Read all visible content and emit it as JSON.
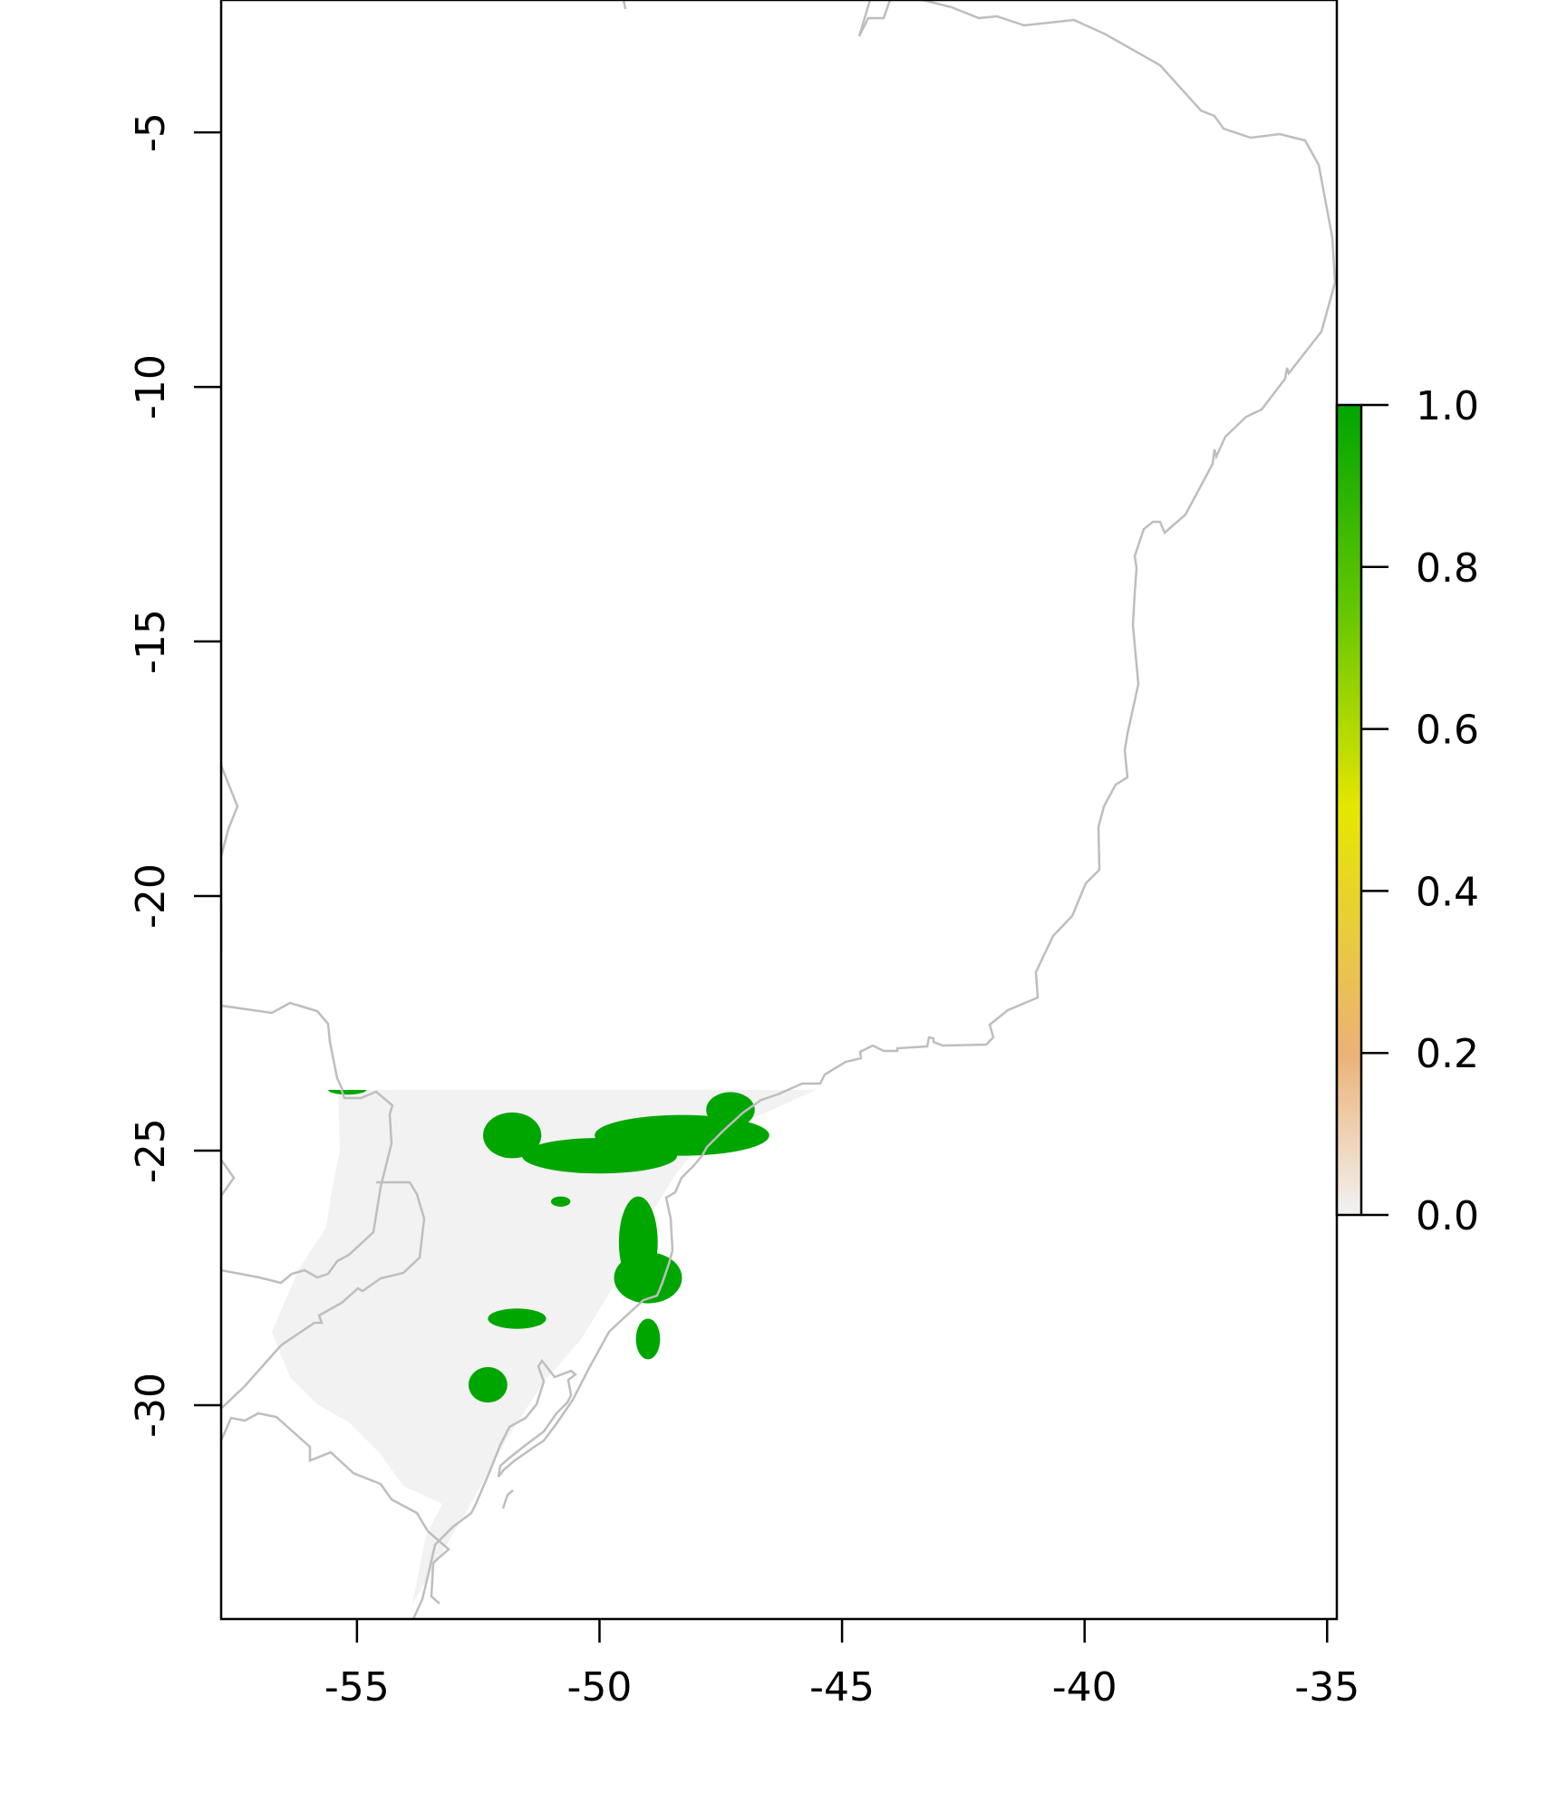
{
  "chart_data": {
    "type": "raster-map",
    "xlim": [
      -57.8,
      -34.8
    ],
    "ylim": [
      -34.2,
      -2.4
    ],
    "x_ticks": [
      {
        "value": -55,
        "label": "-55"
      },
      {
        "value": -50,
        "label": "-50"
      },
      {
        "value": -45,
        "label": "-45"
      },
      {
        "value": -40,
        "label": "-40"
      },
      {
        "value": -35,
        "label": "-35"
      }
    ],
    "y_ticks": [
      {
        "value": -5,
        "label": "-5"
      },
      {
        "value": -10,
        "label": "-10"
      },
      {
        "value": -15,
        "label": "-15"
      },
      {
        "value": -20,
        "label": "-20"
      },
      {
        "value": -25,
        "label": "-25"
      },
      {
        "value": -30,
        "label": "-30"
      }
    ],
    "legend": {
      "range": [
        0.0,
        1.0
      ],
      "ticks": [
        {
          "value": 0.0,
          "label": "0.0"
        },
        {
          "value": 0.2,
          "label": "0.2"
        },
        {
          "value": 0.4,
          "label": "0.4"
        },
        {
          "value": 0.6,
          "label": "0.6"
        },
        {
          "value": 0.8,
          "label": "0.8"
        },
        {
          "value": 1.0,
          "label": "1.0"
        }
      ],
      "colors": [
        "#f2f2f2",
        "#ecb176",
        "#e6e600",
        "#63c600",
        "#00a600"
      ],
      "placement": "right"
    },
    "raster_extent": {
      "lon": [
        -55,
        -46
      ],
      "lat": [
        -34,
        -23.7
      ]
    },
    "suitable_areas_value": 1.0,
    "suitable_areas": [
      {
        "lon": -48.3,
        "lat": -24.7,
        "rx": 1.8,
        "ry": 0.4
      },
      {
        "lon": -50.0,
        "lat": -25.1,
        "rx": 1.6,
        "ry": 0.35
      },
      {
        "lon": -51.8,
        "lat": -24.7,
        "rx": 0.6,
        "ry": 0.45
      },
      {
        "lon": -47.3,
        "lat": -24.2,
        "rx": 0.5,
        "ry": 0.35
      },
      {
        "lon": -49.2,
        "lat": -26.8,
        "rx": 0.4,
        "ry": 0.9
      },
      {
        "lon": -49.0,
        "lat": -27.5,
        "rx": 0.7,
        "ry": 0.5
      },
      {
        "lon": -49.0,
        "lat": -28.7,
        "rx": 0.25,
        "ry": 0.4
      },
      {
        "lon": -52.3,
        "lat": -29.6,
        "rx": 0.4,
        "ry": 0.35
      },
      {
        "lon": -51.7,
        "lat": -28.3,
        "rx": 0.6,
        "ry": 0.2
      },
      {
        "lon": -55.2,
        "lat": -23.8,
        "rx": 0.4,
        "ry": 0.1
      },
      {
        "lon": -50.8,
        "lat": -26.0,
        "rx": 0.2,
        "ry": 0.1
      }
    ]
  }
}
